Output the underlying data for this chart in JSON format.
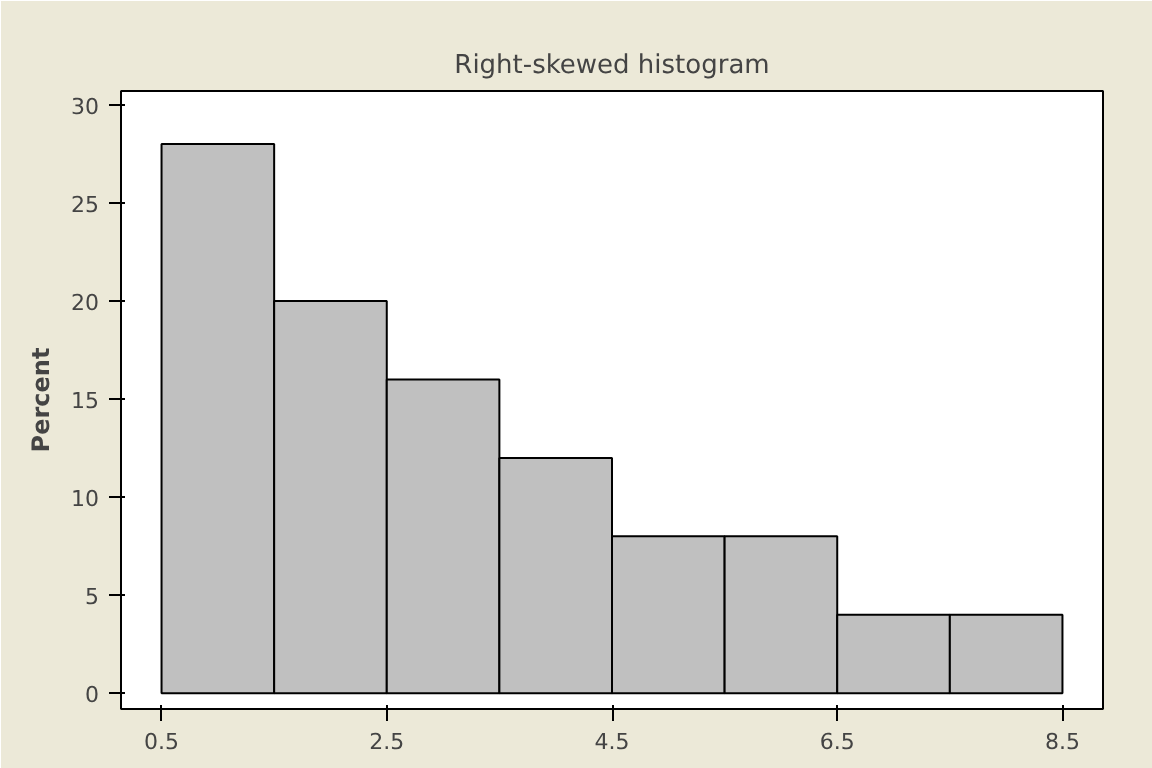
{
  "chart_data": {
    "type": "histogram",
    "title": "Right-skewed histogram",
    "ylabel": "Percent",
    "bins": [
      0.5,
      1.5,
      2.5,
      3.5,
      4.5,
      5.5,
      6.5,
      7.5,
      8.5
    ],
    "values": [
      28,
      20,
      16,
      12,
      8,
      8,
      4,
      4
    ],
    "color": "#c0c0c0",
    "xlim": [
      0.14,
      8.86
    ],
    "xticks": [
      0.5,
      2.5,
      4.5,
      6.5,
      8.5
    ],
    "ylim": [
      -0.8,
      30.7
    ],
    "yticks": [
      0,
      5,
      10,
      15,
      20,
      25,
      30
    ],
    "grid": false
  }
}
